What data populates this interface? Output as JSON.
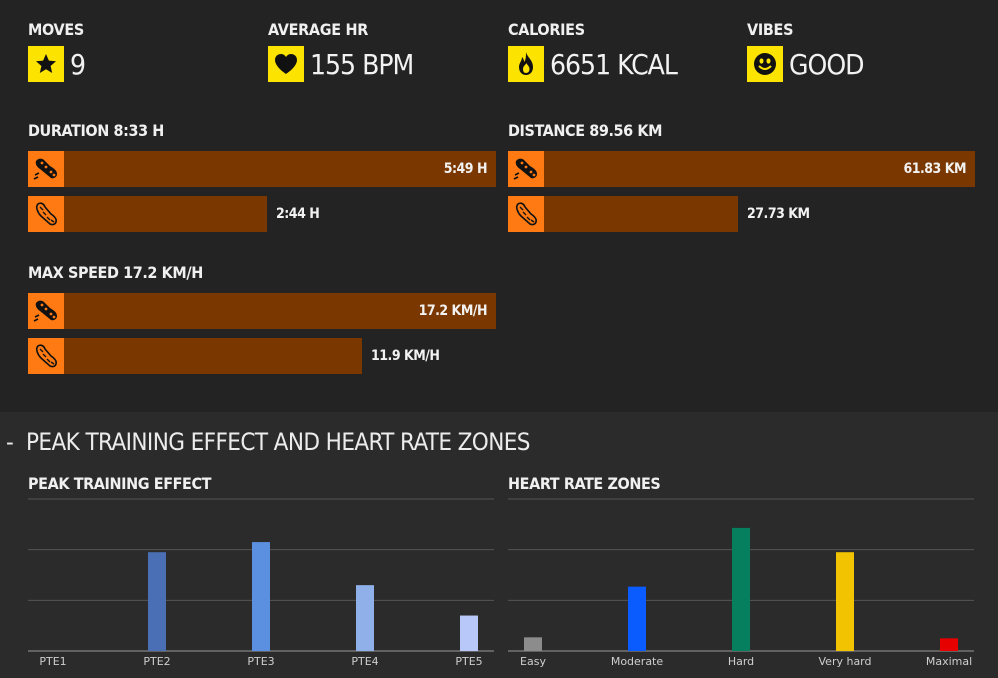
{
  "stats": [
    {
      "label": "MOVES",
      "value": "9",
      "icon": "star-icon"
    },
    {
      "label": "AVERAGE HR",
      "value": "155 BPM",
      "icon": "heart-icon"
    },
    {
      "label": "CALORIES",
      "value": "6651 KCAL",
      "icon": "fire-icon"
    },
    {
      "label": "VIBES",
      "value": "GOOD",
      "icon": "smiley-icon"
    }
  ],
  "duration": {
    "title": "DURATION 8:33 H",
    "bars": [
      {
        "value": "5:49 H",
        "fraction": 1.0,
        "icon": "running-shoe-icon"
      },
      {
        "value": "2:44 H",
        "fraction": 0.47,
        "icon": "shoe-sole-icon"
      }
    ]
  },
  "distance": {
    "title": "DISTANCE 89.56 KM",
    "bars": [
      {
        "value": "61.83 KM",
        "fraction": 1.0,
        "icon": "running-shoe-icon"
      },
      {
        "value": "27.73 KM",
        "fraction": 0.448,
        "icon": "shoe-sole-icon"
      }
    ]
  },
  "max_speed": {
    "title": "MAX SPEED 17.2 KM/H",
    "bars": [
      {
        "value": "17.2 KM/H",
        "fraction": 1.0,
        "icon": "running-shoe-icon"
      },
      {
        "value": "11.9 KM/H",
        "fraction": 0.692,
        "icon": "shoe-sole-icon"
      }
    ]
  },
  "lower_section": {
    "toggle": "-",
    "title": "PEAK TRAINING EFFECT AND HEART RATE ZONES"
  },
  "colors": {
    "stat_icon_bg": "#fce400",
    "bar_icon_bg": "#ff7a12",
    "bar_fill": "#7a3800"
  },
  "chart_data": [
    {
      "type": "bar",
      "title": "PEAK TRAINING EFFECT",
      "categories": [
        "PTE1",
        "PTE2",
        "PTE3",
        "PTE4",
        "PTE5"
      ],
      "values": [
        0,
        1.95,
        2.15,
        1.3,
        0.7
      ],
      "colors": [
        "#4a6fb5",
        "#4a6fb5",
        "#5b8fe0",
        "#8fb0e8",
        "#b8c8f8"
      ],
      "ylim": [
        0,
        3
      ],
      "grid": true
    },
    {
      "type": "bar",
      "title": "HEART RATE ZONES",
      "categories": [
        "Easy",
        "Moderate",
        "Hard",
        "Very hard",
        "Maximal"
      ],
      "values": [
        0.27,
        1.27,
        2.43,
        1.95,
        0.25
      ],
      "colors": [
        "#8c8c8c",
        "#0a5cff",
        "#067f5f",
        "#f2c300",
        "#e60000"
      ],
      "ylim": [
        0,
        3
      ],
      "grid": true
    }
  ]
}
